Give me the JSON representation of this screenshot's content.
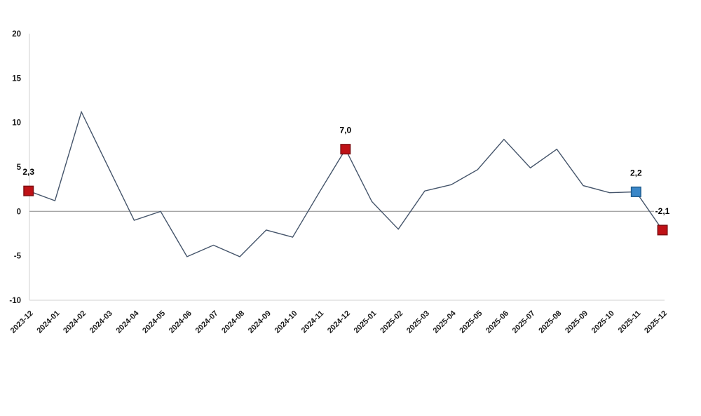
{
  "chart_data": {
    "type": "line",
    "title": "",
    "xlabel": "",
    "ylabel": "",
    "legend": "none",
    "grid": "zero-line-only",
    "ylim": [
      -10,
      20
    ],
    "yticks": [
      20,
      15,
      10,
      5,
      0,
      -5,
      -10
    ],
    "ytick_labels": [
      "20",
      "15",
      "10",
      "5",
      "0",
      "-5",
      "-10"
    ],
    "categories": [
      "2023-12",
      "2024-01",
      "2024-02",
      "2024-03",
      "2024-04",
      "2024-05",
      "2024-06",
      "2024-07",
      "2024-08",
      "2024-09",
      "2024-10",
      "2024-11",
      "2024-12",
      "2025-01",
      "2025-02",
      "2025-03",
      "2025-04",
      "2025-05",
      "2025-06",
      "2025-07",
      "2025-08",
      "2025-09",
      "2025-10",
      "2025-11",
      "2025-12"
    ],
    "values": [
      2.3,
      1.2,
      11.2,
      5.1,
      -1.0,
      0.0,
      -5.1,
      -3.8,
      -5.1,
      -2.1,
      -2.9,
      2.1,
      7.0,
      1.1,
      -2.0,
      2.3,
      3.0,
      4.7,
      8.1,
      4.9,
      7.0,
      2.9,
      2.1,
      2.2,
      -2.1
    ],
    "markers": [
      {
        "index": 0,
        "category": "2023-12",
        "value": 2.3,
        "label": "2,3",
        "color": "red"
      },
      {
        "index": 12,
        "category": "2024-12",
        "value": 7.0,
        "label": "7,0",
        "color": "red"
      },
      {
        "index": 23,
        "category": "2025-11",
        "value": 2.2,
        "label": "2,2",
        "color": "blue"
      },
      {
        "index": 24,
        "category": "2025-12",
        "value": -2.1,
        "label": "-2,1",
        "color": "red"
      }
    ],
    "colors": {
      "line": "#44546a",
      "marker_red_fill": "#bf1116",
      "marker_red_stroke": "#7e0f12",
      "marker_blue_fill": "#3a87c8",
      "marker_blue_stroke": "#1f5d8f",
      "zero_line": "#a6a6a6",
      "axis_line": "#d9d9d9",
      "text": "#1a1a1a"
    }
  }
}
